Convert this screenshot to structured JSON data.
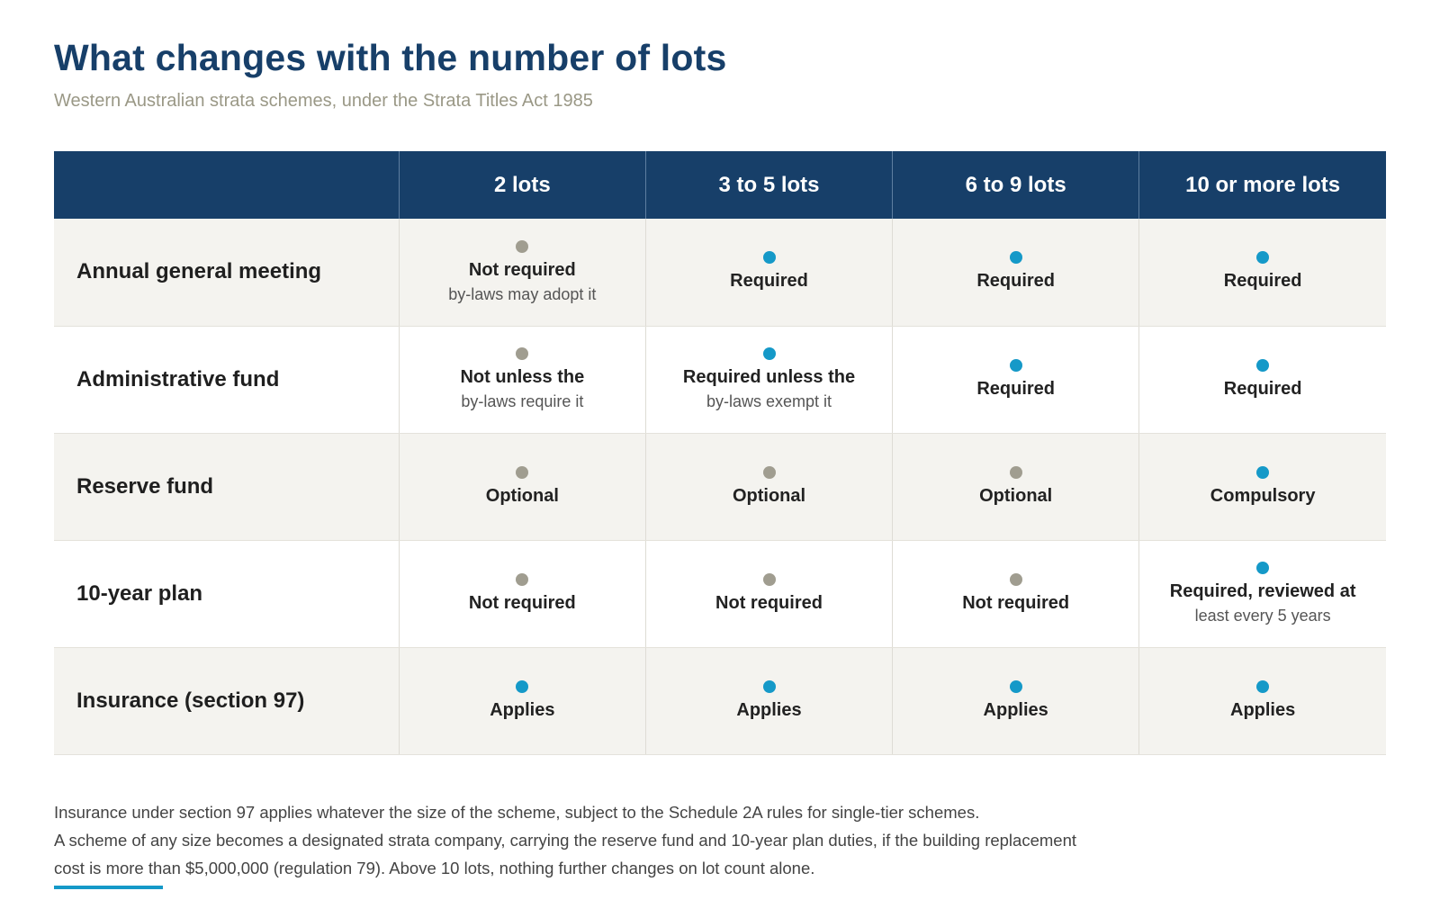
{
  "title": "What changes with the number of lots",
  "subtitle": "Western Australian strata schemes, under the Strata Titles Act 1985",
  "columns": [
    "2 lots",
    "3 to 5 lots",
    "6 to 9 lots",
    "10 or more lots"
  ],
  "rows": [
    {
      "label": "Annual general meeting",
      "cells": [
        {
          "status": "off",
          "main": "Not required",
          "detail": "by-laws may adopt it"
        },
        {
          "status": "on",
          "main": "Required",
          "detail": ""
        },
        {
          "status": "on",
          "main": "Required",
          "detail": ""
        },
        {
          "status": "on",
          "main": "Required",
          "detail": ""
        }
      ]
    },
    {
      "label": "Administrative fund",
      "cells": [
        {
          "status": "off",
          "main": "Not unless the",
          "detail": "by-laws require it"
        },
        {
          "status": "on",
          "main": "Required unless the",
          "detail": "by-laws exempt it"
        },
        {
          "status": "on",
          "main": "Required",
          "detail": ""
        },
        {
          "status": "on",
          "main": "Required",
          "detail": ""
        }
      ]
    },
    {
      "label": "Reserve fund",
      "cells": [
        {
          "status": "off",
          "main": "Optional",
          "detail": ""
        },
        {
          "status": "off",
          "main": "Optional",
          "detail": ""
        },
        {
          "status": "off",
          "main": "Optional",
          "detail": ""
        },
        {
          "status": "on",
          "main": "Compulsory",
          "detail": ""
        }
      ]
    },
    {
      "label": "10-year plan",
      "cells": [
        {
          "status": "off",
          "main": "Not required",
          "detail": ""
        },
        {
          "status": "off",
          "main": "Not required",
          "detail": ""
        },
        {
          "status": "off",
          "main": "Not required",
          "detail": ""
        },
        {
          "status": "on",
          "main": "Required, reviewed at",
          "detail": "least every 5 years"
        }
      ]
    },
    {
      "label": "Insurance (section 97)",
      "cells": [
        {
          "status": "on",
          "main": "Applies",
          "detail": ""
        },
        {
          "status": "on",
          "main": "Applies",
          "detail": ""
        },
        {
          "status": "on",
          "main": "Applies",
          "detail": ""
        },
        {
          "status": "on",
          "main": "Applies",
          "detail": ""
        }
      ]
    }
  ],
  "notes": [
    "Insurance under section 97 applies whatever the size of the scheme, subject to the Schedule 2A rules for single-tier schemes.",
    "A scheme of any size becomes a designated strata company, carrying the reserve fund and 10-year plan duties, if the building replacement cost is more than $5,000,000 (regulation 79). Above 10 lots, nothing further changes on lot count alone."
  ],
  "colors": {
    "header_bg": "#173f69",
    "title": "#173f69",
    "status_on": "#1599c8",
    "status_off": "#a09d90",
    "row_alt": "#f4f3ef"
  }
}
